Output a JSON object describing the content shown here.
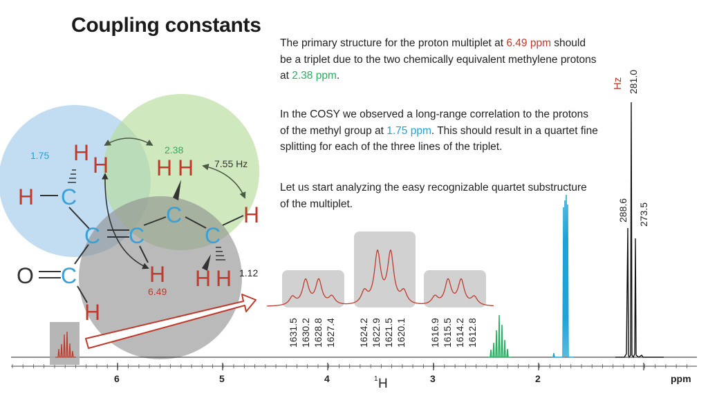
{
  "title": "Coupling constants",
  "paragraphs": {
    "p1": {
      "a": "The primary structure for the proton multiplet at ",
      "b": "6.49 ppm",
      "c": " should be a triplet due to the two chemically equivalent methylene protons at ",
      "d": "2.38 ppm",
      "e": "."
    },
    "p2": {
      "a": "In the COSY we observed a long-range correlation to the protons of the methyl group at ",
      "b": "1.75 ppm",
      "c": ". This should result in a quartet fine splitting for each of the three lines of the triplet."
    },
    "p3": "Let us start analyzing the easy recognizable quartet substructure of the multiplet."
  },
  "molecule": {
    "shift_methyl": "1.75",
    "shift_ch2": "2.38",
    "shift_ch3": "1.12",
    "shift_aldehyde_ch": "6.49",
    "coupling": "7.55 Hz",
    "atoms": {
      "H": "H",
      "C": "C",
      "O": "O"
    }
  },
  "hz_unit": "Hz",
  "peak_labels_hz": {
    "top": "281.0",
    "left": "288.6",
    "right": "273.5"
  },
  "multiplet_labels": [
    [
      "1631.5",
      "1630.2",
      "1628.8",
      "1627.4"
    ],
    [
      "1624.2",
      "1622.9",
      "1621.5",
      "1620.1"
    ],
    [
      "1616.9",
      "1615.5",
      "1614.2",
      "1612.8"
    ]
  ],
  "axis": {
    "ticks": [
      "6",
      "5",
      "4",
      "3",
      "2"
    ],
    "nucleus_sup": "1",
    "nucleus": "H",
    "unit": "ppm"
  },
  "colors": {
    "red": "#c0392b",
    "green": "#27ae60",
    "cyan": "#1fa3d6",
    "carbon": "#3aa0d8",
    "circle_blue": "#aed0ec",
    "circle_green": "#b7dc9b",
    "circle_gray": "#8c8c8c"
  }
}
